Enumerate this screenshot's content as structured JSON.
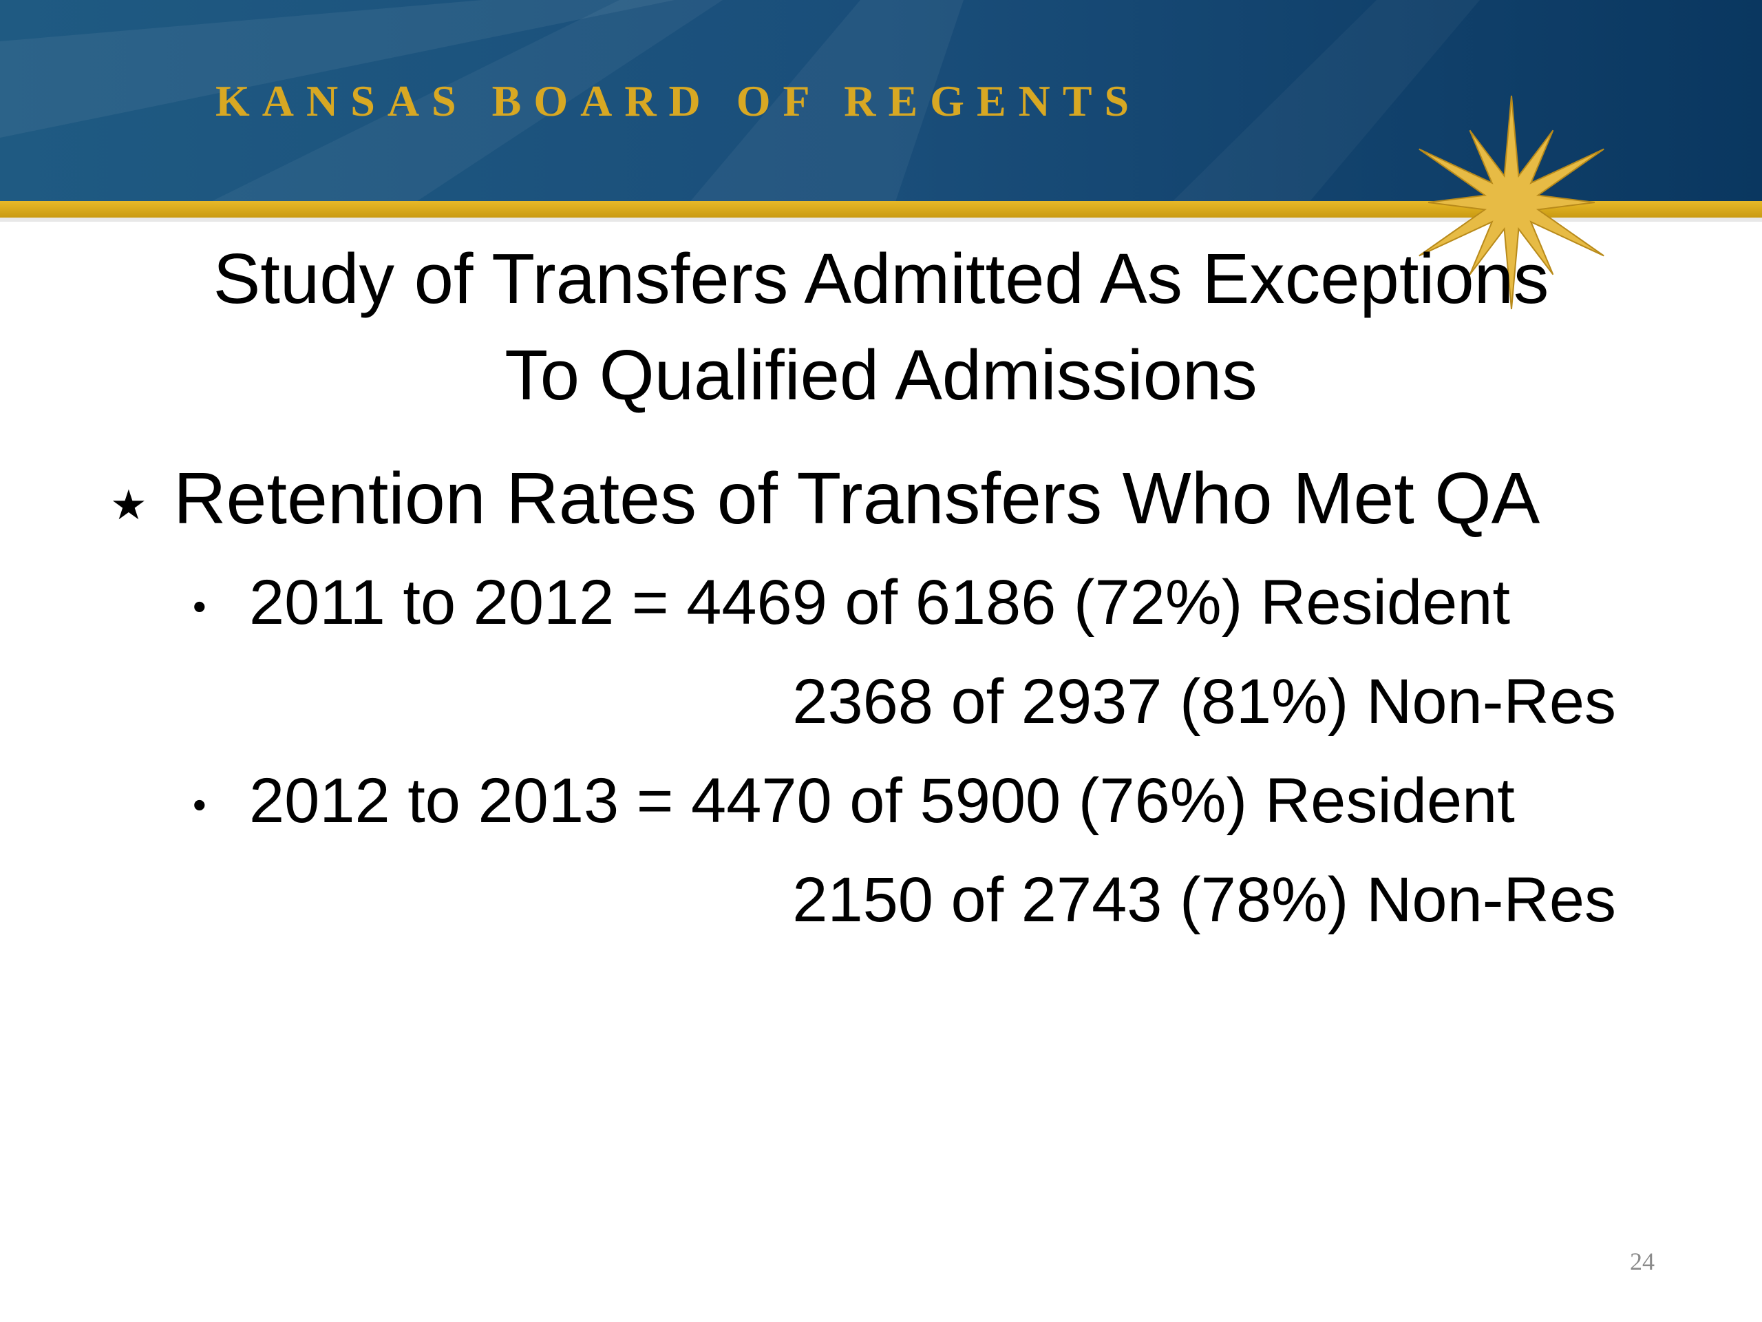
{
  "header": {
    "title": "KANSAS BOARD OF REGENTS"
  },
  "slide": {
    "title_lines": [
      "Study of Transfers Admitted As Exceptions",
      "To Qualified Admissions"
    ],
    "heading": "Retention Rates of Transfers Who Met QA",
    "items": [
      {
        "text": "2011 to 2012 = 4469 of 6186 (72%) Resident",
        "continuation": "2368 of 2937 (81%) Non-Res"
      },
      {
        "text": "2012 to 2013 = 4470 of 5900 (76%) Resident",
        "continuation": "2150 of 2743 (78%) Non-Res"
      }
    ]
  },
  "footer": {
    "page_number": "24"
  }
}
